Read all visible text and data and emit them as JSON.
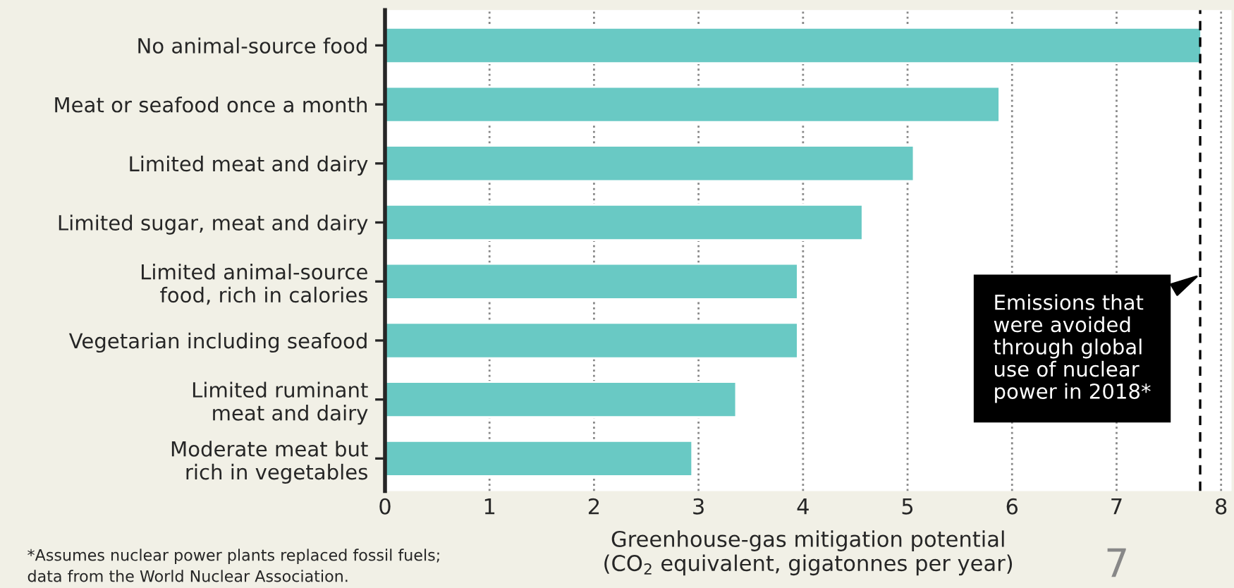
{
  "chart_data": {
    "type": "bar",
    "orientation": "horizontal",
    "categories": [
      "No animal-source food",
      "Meat or seafood once a month",
      "Limited meat and dairy",
      "Limited sugar, meat and dairy",
      "Limited animal-source\nfood, rich in calories",
      "Vegetarian including seafood",
      "Limited ruminant\nmeat and dairy",
      "Moderate meat but\nrich in vegetables"
    ],
    "values": [
      7.81,
      5.88,
      5.06,
      4.57,
      3.95,
      3.95,
      3.36,
      2.94
    ],
    "color": "#69c9c4",
    "xlabel": "Greenhouse-gas mitigation potential\n(CO$_{2}$ equivalent, gigatonnes per year)",
    "xlim": [
      0,
      8.1
    ],
    "xticks": [
      0,
      1,
      2,
      3,
      4,
      5,
      6,
      7,
      8
    ],
    "grid": "x",
    "ref_lines": [
      {
        "axis": "x",
        "value": 7.8,
        "label": "Emissions that\nwere avoided\nthrough global\nuse of nuclear\npower in 2018*",
        "color": "#000000",
        "line_style": "dashed"
      }
    ],
    "annotations": [
      "*Assumes nuclear power plants replaced fossil fuels;\ndata from the World Nuclear Association.",
      "7"
    ]
  }
}
